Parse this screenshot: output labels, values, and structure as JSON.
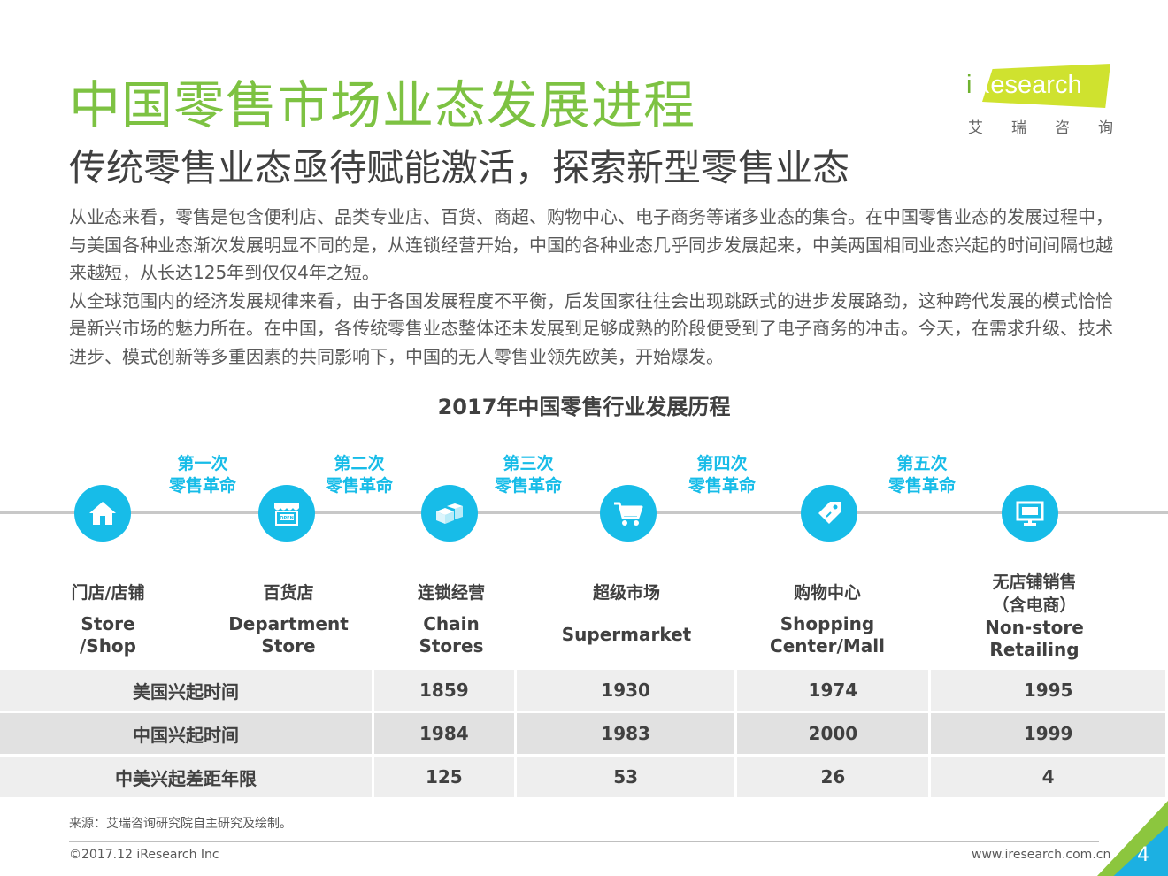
{
  "header": {
    "title": "中国零售市场业态发展进程",
    "subtitle": "传统零售业态亟待赋能激活，探索新型零售业态"
  },
  "logo": {
    "text_i": "i",
    "text_rest": "Research",
    "cn_chars": [
      "艾",
      "瑞",
      "咨",
      "询"
    ]
  },
  "intro": [
    "从业态来看，零售是包含便利店、品类专业店、百货、商超、购物中心、电子商务等诸多业态的集合。在中国零售业态的发展过程中，与美国各种业态渐次发展明显不同的是，从连锁经营开始，中国的各种业态几乎同步发展起来，中美两国相同业态兴起的时间间隔也越来越短，从长达125年到仅仅4年之短。",
    "从全球范围内的经济发展规律来看，由于各国发展程度不平衡，后发国家往往会出现跳跃式的进步发展路劲，这种跨代发展的模式恰恰是新兴市场的魅力所在。在中国，各传统零售业态整体还未发展到足够成熟的阶段便受到了电子商务的冲击。今天，在需求升级、技术进步、模式创新等多重因素的共同影响下，中国的无人零售业领先欧美，开始爆发。"
  ],
  "chart_title": "2017年中国零售行业发展历程",
  "revolutions": [
    {
      "l1": "第一次",
      "l2": "零售革命"
    },
    {
      "l1": "第二次",
      "l2": "零售革命"
    },
    {
      "l1": "第三次",
      "l2": "零售革命"
    },
    {
      "l1": "第四次",
      "l2": "零售革命"
    },
    {
      "l1": "第五次",
      "l2": "零售革命"
    }
  ],
  "formats": [
    {
      "cn1": "门店/店铺",
      "cn2": "",
      "en1": "Store",
      "en2": "/Shop",
      "icon": "house-icon"
    },
    {
      "cn1": "百货店",
      "cn2": "",
      "en1": "Department",
      "en2": "Store",
      "icon": "storefront-icon"
    },
    {
      "cn1": "连锁经营",
      "cn2": "",
      "en1": "Chain",
      "en2": "Stores",
      "icon": "boxes-icon"
    },
    {
      "cn1": "超级市场",
      "cn2": "",
      "en1": "Supermarket",
      "en2": "",
      "icon": "shopping-cart-icon"
    },
    {
      "cn1": "购物中心",
      "cn2": "",
      "en1": "Shopping",
      "en2": "Center/Mall",
      "icon": "price-tag-icon"
    },
    {
      "cn1": "无店铺销售",
      "cn2": "（含电商）",
      "en1": "Non-store",
      "en2": "Retailing",
      "icon": "monitor-icon"
    }
  ],
  "table": {
    "rows": [
      {
        "label": "美国兴起时间",
        "values": [
          "1859",
          "1930",
          "1974",
          "1995"
        ]
      },
      {
        "label": "中国兴起时间",
        "values": [
          "1984",
          "1983",
          "2000",
          "1999"
        ]
      },
      {
        "label": "中美兴起差距年限",
        "values": [
          "125",
          "53",
          "26",
          "4"
        ]
      }
    ]
  },
  "footer": {
    "source": "来源：艾瑞咨询研究院自主研究及绘制。",
    "copyright": "©2017.12 iResearch Inc",
    "website": "www.iresearch.com.cn",
    "page": "4"
  },
  "colors": {
    "title_green": "#7dc242",
    "accent_blue": "#17bce8",
    "row_light": "#eeeeee",
    "row_dark": "#e1e1e1"
  }
}
